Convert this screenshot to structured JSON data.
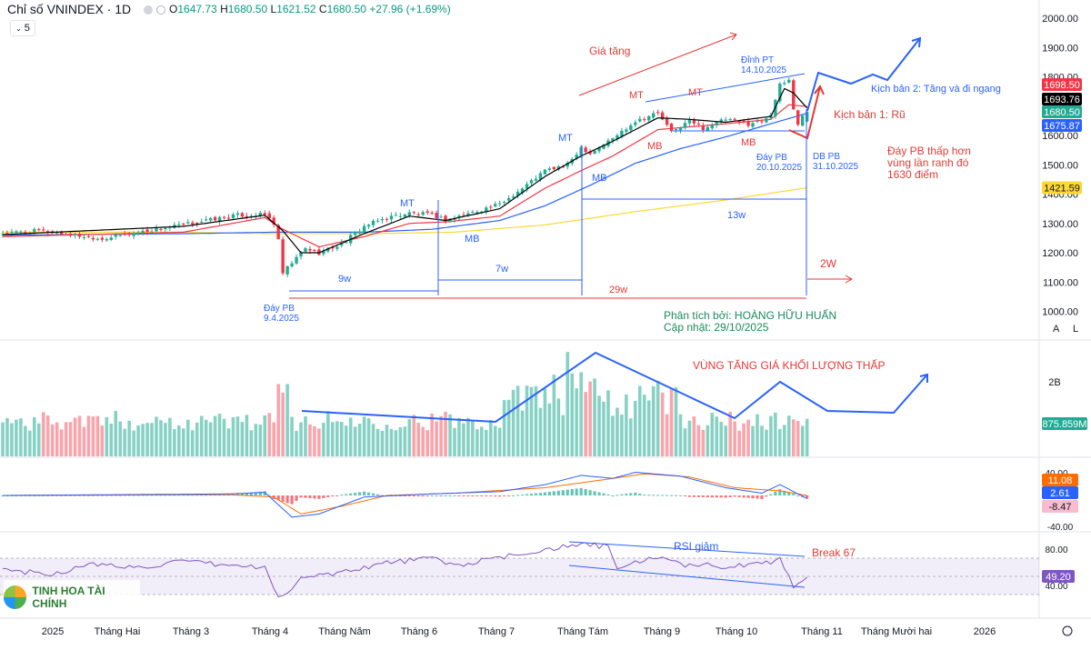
{
  "header": {
    "title": "Chỉ số VNINDEX · 1D",
    "open_label": "O",
    "open": "1647.73",
    "high_label": "H",
    "high": "1680.50",
    "low_label": "L",
    "low": "1621.52",
    "close_label": "C",
    "close": "1680.50",
    "change": "+27.96 (+1.69%)",
    "interval_value": "5"
  },
  "logo_text": "TINH HOA TÀI CHÍNH",
  "scale_buttons": {
    "auto": "A",
    "log": "L"
  },
  "colors": {
    "up": "#22ab94",
    "down": "#f23645",
    "ma_black": "#000000",
    "ma_red": "#f23645",
    "ma_blue": "#2962ff",
    "ma_yellow": "#fdd835",
    "annot_blue": "#2962ff",
    "rsi": "#7e57c2"
  },
  "chart_data": [
    {
      "type": "candlestick",
      "title": "Chỉ số VNINDEX · 1D",
      "x_ticks": [
        "2025",
        "Tháng Hai",
        "Tháng 3",
        "Tháng 4",
        "Tháng Năm",
        "Tháng 6",
        "Tháng 7",
        "Tháng Tám",
        "Tháng 9",
        "Tháng 10",
        "Tháng 11",
        "Tháng Mười hai",
        "2026"
      ],
      "y_ticks": [
        "2000.00",
        "1900.00",
        "1800.00",
        "1700.00",
        "1600.00",
        "1500.00",
        "1400.00",
        "1300.00",
        "1200.00",
        "1100.00",
        "1000.00"
      ],
      "ylim": [
        1000,
        2000
      ],
      "price_tags": [
        {
          "value": "1698.50",
          "color": "#f23645"
        },
        {
          "value": "1693.76",
          "color": "#000000"
        },
        {
          "value": "1680.50",
          "color": "#22ab94"
        },
        {
          "value": "1675.87",
          "color": "#2962ff"
        },
        {
          "value": "1421.59",
          "color": "#fdd835"
        }
      ],
      "anchors": [
        [
          0,
          1265
        ],
        [
          8,
          1275
        ],
        [
          15,
          1262
        ],
        [
          22,
          1248
        ],
        [
          30,
          1270
        ],
        [
          38,
          1290
        ],
        [
          45,
          1310
        ],
        [
          52,
          1328
        ],
        [
          58,
          1330
        ],
        [
          60,
          1300
        ],
        [
          61,
          1240
        ],
        [
          62,
          1130
        ],
        [
          64,
          1165
        ],
        [
          67,
          1215
        ],
        [
          70,
          1200
        ],
        [
          75,
          1230
        ],
        [
          80,
          1290
        ],
        [
          85,
          1320
        ],
        [
          90,
          1335
        ],
        [
          95,
          1330
        ],
        [
          98,
          1312
        ],
        [
          100,
          1320
        ],
        [
          110,
          1365
        ],
        [
          115,
          1420
        ],
        [
          120,
          1480
        ],
        [
          125,
          1500
        ],
        [
          128,
          1560
        ],
        [
          130,
          1540
        ],
        [
          135,
          1590
        ],
        [
          140,
          1650
        ],
        [
          145,
          1678
        ],
        [
          148,
          1610
        ],
        [
          152,
          1650
        ],
        [
          155,
          1625
        ],
        [
          160,
          1655
        ],
        [
          165,
          1640
        ],
        [
          168,
          1650
        ],
        [
          170,
          1675
        ],
        [
          172,
          1770
        ],
        [
          174,
          1790
        ],
        [
          175,
          1690
        ],
        [
          176,
          1640
        ],
        [
          177,
          1665
        ],
        [
          178,
          1680.5
        ]
      ],
      "ma_black": [
        [
          0,
          1262
        ],
        [
          40,
          1290
        ],
        [
          58,
          1328
        ],
        [
          62,
          1275
        ],
        [
          66,
          1200
        ],
        [
          70,
          1200
        ],
        [
          80,
          1265
        ],
        [
          90,
          1325
        ],
        [
          98,
          1310
        ],
        [
          110,
          1350
        ],
        [
          120,
          1460
        ],
        [
          128,
          1530
        ],
        [
          135,
          1580
        ],
        [
          145,
          1660
        ],
        [
          152,
          1655
        ],
        [
          160,
          1645
        ],
        [
          170,
          1665
        ],
        [
          173,
          1760
        ],
        [
          175,
          1745
        ],
        [
          178,
          1693.76
        ]
      ],
      "ma_red": [
        [
          0,
          1255
        ],
        [
          40,
          1270
        ],
        [
          58,
          1320
        ],
        [
          62,
          1280
        ],
        [
          70,
          1220
        ],
        [
          80,
          1255
        ],
        [
          90,
          1300
        ],
        [
          98,
          1305
        ],
        [
          110,
          1325
        ],
        [
          120,
          1420
        ],
        [
          128,
          1480
        ],
        [
          135,
          1530
        ],
        [
          145,
          1620
        ],
        [
          160,
          1640
        ],
        [
          170,
          1655
        ],
        [
          174,
          1705
        ],
        [
          178,
          1698.5
        ]
      ],
      "ma_blue": [
        [
          0,
          1260
        ],
        [
          40,
          1265
        ],
        [
          60,
          1270
        ],
        [
          80,
          1270
        ],
        [
          95,
          1280
        ],
        [
          100,
          1290
        ],
        [
          110,
          1310
        ],
        [
          120,
          1360
        ],
        [
          130,
          1430
        ],
        [
          140,
          1505
        ],
        [
          150,
          1555
        ],
        [
          160,
          1595
        ],
        [
          170,
          1640
        ],
        [
          178,
          1675.87
        ]
      ],
      "ma_yellow": [
        [
          0,
          1270
        ],
        [
          40,
          1270
        ],
        [
          60,
          1265
        ],
        [
          80,
          1265
        ],
        [
          100,
          1270
        ],
        [
          120,
          1295
        ],
        [
          140,
          1340
        ],
        [
          160,
          1380
        ],
        [
          178,
          1421.59
        ]
      ]
    },
    {
      "type": "bar",
      "title": "",
      "y_ticks": [
        "2B"
      ],
      "last_value_tag": "875.859M",
      "trend_lines": "volume"
    },
    {
      "type": "line",
      "title": "",
      "y_ticks": [
        "40.00",
        "-40.00"
      ],
      "value_tags": [
        {
          "value": "11.08",
          "color": "#ff6d00"
        },
        {
          "value": "2.61",
          "color": "#2962ff"
        },
        {
          "value": "-8.47",
          "color": "#f8bbd0"
        }
      ]
    },
    {
      "type": "line",
      "title": "",
      "y_ticks": [
        "80.00",
        "40.00"
      ],
      "value_tag": "49.20",
      "anchors": [
        [
          0,
          58
        ],
        [
          10,
          52
        ],
        [
          20,
          63
        ],
        [
          30,
          60
        ],
        [
          40,
          66
        ],
        [
          50,
          62
        ],
        [
          58,
          60
        ],
        [
          60,
          35
        ],
        [
          62,
          26
        ],
        [
          66,
          48
        ],
        [
          75,
          55
        ],
        [
          85,
          65
        ],
        [
          95,
          70
        ],
        [
          100,
          62
        ],
        [
          110,
          70
        ],
        [
          120,
          80
        ],
        [
          130,
          85
        ],
        [
          134,
          82
        ],
        [
          136,
          58
        ],
        [
          140,
          65
        ],
        [
          145,
          72
        ],
        [
          150,
          62
        ],
        [
          155,
          64
        ],
        [
          160,
          60
        ],
        [
          165,
          62
        ],
        [
          170,
          66
        ],
        [
          172,
          70
        ],
        [
          175,
          40
        ],
        [
          178,
          49.2
        ]
      ]
    }
  ],
  "annotations": {
    "gia_tang": "Giá tăng",
    "dinh_pt": "Đỉnh PT",
    "dinh_pt_date": "14.10.2025",
    "kich_ban_2": "Kịch bản 2: Tăng và đi ngang",
    "kich_ban_1": "Kịch bản 1: Rũ",
    "day_pb_thap_hon_1": "Đáy PB thấp hơn",
    "day_pb_thap_hon_2": "vùng lần ranh đó",
    "day_pb_thap_hon_3": "1630 điểm",
    "mt": "MT",
    "mb": "MB",
    "day_pb": "Đáy PB",
    "day_pb_date1": "20.10.2025",
    "db_pb": "DB PB",
    "db_pb_date": "31.10.2025",
    "w13": "13w",
    "w9": "9w",
    "w7": "7w",
    "w29": "29w",
    "w2": "2W",
    "day_pb_apr": "Đáy PB",
    "day_pb_apr_date": "9.4.2025",
    "analyst": "Phân tích bởi: HOÀNG HỮU HUẤN",
    "updated": "Cập nhật: 29/10/2025",
    "vol_zone": "VÙNG TĂNG GIÁ KHỐI LƯỢNG THẤP",
    "rsi_giam": "RSI giảm",
    "break67": "Break 67"
  }
}
